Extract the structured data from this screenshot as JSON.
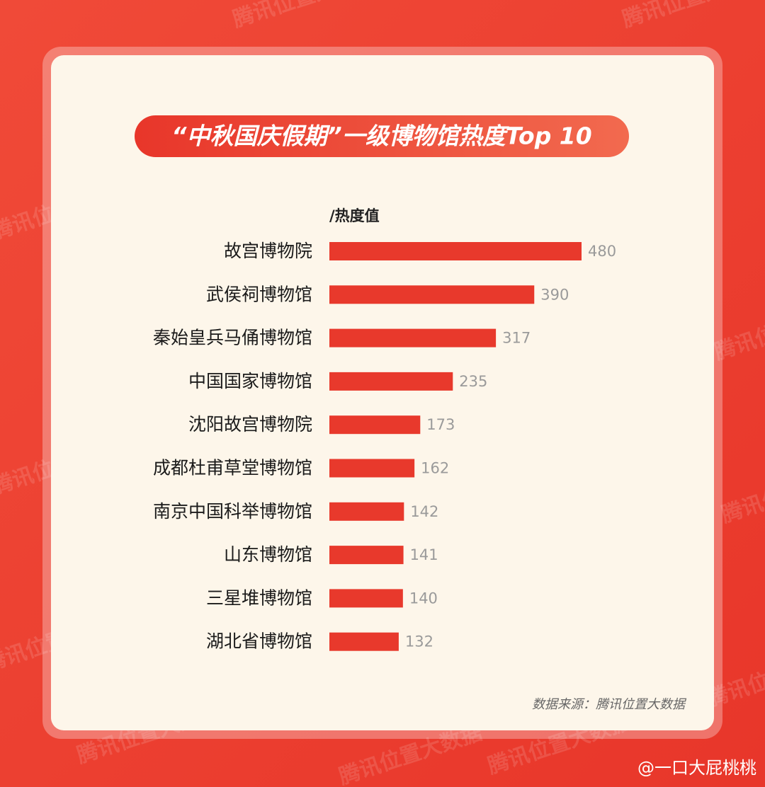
{
  "watermark": "腾讯位置大数据",
  "credit": "@一口大屁桃桃",
  "chart_data": {
    "type": "bar",
    "orientation": "horizontal",
    "title": "“中秋国庆假期”一级博物馆热度Top 10",
    "x_label": "/热度值",
    "categories": [
      "故宫博物院",
      "武侯祠博物馆",
      "秦始皇兵马俑博物馆",
      "中国国家博物馆",
      "沈阳故宫博物院",
      "成都杜甫草堂博物馆",
      "南京中国科举博物馆",
      "山东博物馆",
      "三星堆博物馆",
      "湖北省博物馆"
    ],
    "values": [
      480,
      390,
      317,
      235,
      173,
      162,
      142,
      141,
      140,
      132
    ],
    "color": "#e8392c",
    "source": "数据来源：腾讯位置大数据"
  }
}
